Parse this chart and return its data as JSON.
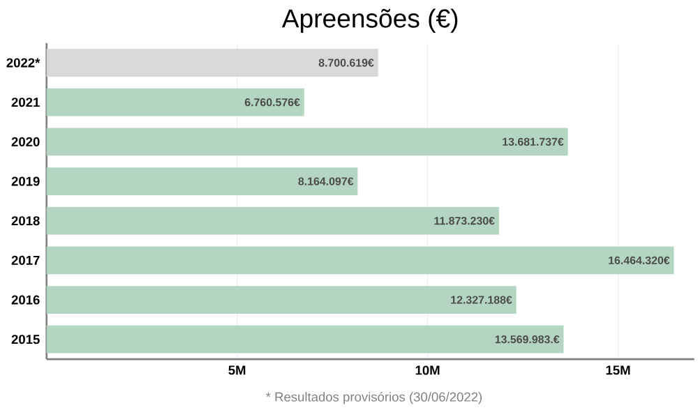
{
  "chart_data": {
    "type": "bar",
    "orientation": "horizontal",
    "title": "Apreensões (€)",
    "categories": [
      "2022*",
      "2021",
      "2020",
      "2019",
      "2018",
      "2017",
      "2016",
      "2015"
    ],
    "values": [
      8700619,
      6760576,
      13681737,
      8164097,
      11873230,
      16464320,
      12327188,
      13569983
    ],
    "value_labels": [
      "8.700.619€",
      "6.760.576€",
      "13.681.737€",
      "8.164.097€",
      "11.873.230€",
      "16.464.320€",
      "12.327.188€",
      "13.569.983.€"
    ],
    "colors": [
      "#d9d9d9",
      "#b3d5c2",
      "#b3d5c2",
      "#b3d5c2",
      "#b3d5c2",
      "#b3d5c2",
      "#b3d5c2",
      "#b3d5c2"
    ],
    "xlim": [
      0,
      17000000
    ],
    "xticks": [
      {
        "value": 5000000,
        "label": "5M"
      },
      {
        "value": 10000000,
        "label": "10M"
      },
      {
        "value": 15000000,
        "label": "15M"
      }
    ],
    "grid": "x",
    "annotations": [
      "* Resultados provisórios (30/06/2022)"
    ]
  }
}
